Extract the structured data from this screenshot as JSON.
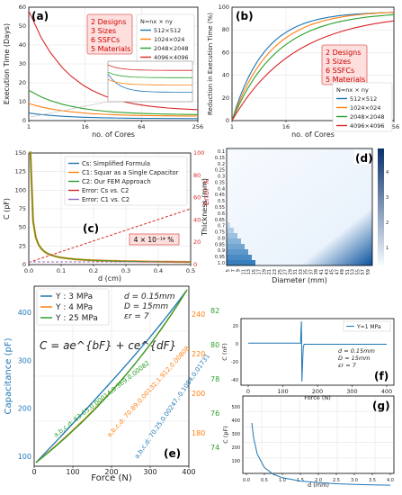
{
  "chart_data": [
    {
      "id": "a",
      "type": "line",
      "panel_label": "(a)",
      "xlabel": "no. of Cores",
      "ylabel": "Execution Time (Days)",
      "xticks": [
        "1",
        "16",
        "64",
        "256"
      ],
      "yticks": [
        "0",
        "10",
        "20",
        "30",
        "40",
        "50",
        "60"
      ],
      "ylim": [
        0,
        60
      ],
      "annotation": [
        "2 Designs",
        "3 Sizes",
        "6 SSFCs",
        "5 Materials"
      ],
      "legend_title": "N=nx × ny",
      "series": [
        {
          "name": "512×512",
          "color": "#1f77b4",
          "x": [
            1,
            4,
            16,
            64,
            128,
            256
          ],
          "values": [
            4,
            3,
            2,
            1.5,
            1.2,
            1
          ]
        },
        {
          "name": "1024×024",
          "color": "#ff7f0e",
          "x": [
            1,
            4,
            16,
            64,
            128,
            256
          ],
          "values": [
            9,
            6,
            4,
            3,
            2.5,
            2.3
          ]
        },
        {
          "name": "2048×2048",
          "color": "#2ca02c",
          "x": [
            1,
            4,
            16,
            64,
            128,
            256
          ],
          "values": [
            16,
            11,
            7,
            4.5,
            3.5,
            3
          ]
        },
        {
          "name": "4096×4096",
          "color": "#d62728",
          "x": [
            1,
            4,
            16,
            64,
            128,
            256
          ],
          "values": [
            58,
            40,
            22,
            9,
            6,
            5
          ]
        }
      ]
    },
    {
      "id": "b",
      "type": "line",
      "panel_label": "(b)",
      "xlabel": "no. of Cores",
      "ylabel": "Reduction in Execution Time (%)",
      "xticks": [
        "1",
        "16",
        "64",
        "256"
      ],
      "yticks": [
        "0",
        "20",
        "40",
        "60",
        "80",
        "100"
      ],
      "ylim": [
        0,
        100
      ],
      "annotation": [
        "2 Designs",
        "3 Sizes",
        "6 SSFCs",
        "5 Materials"
      ],
      "legend_title": "N=nx × ny",
      "series": [
        {
          "name": "512×512",
          "color": "#1f77b4"
        },
        {
          "name": "1024×024",
          "color": "#ff7f0e"
        },
        {
          "name": "2048×2048",
          "color": "#2ca02c"
        },
        {
          "name": "4096×4096",
          "color": "#d62728"
        }
      ]
    },
    {
      "id": "c",
      "type": "line",
      "panel_label": "(c)",
      "xlabel": "d (cm)",
      "ylabel": "C (pF)",
      "ylabel_right": "Error %",
      "xticks": [
        "0.0",
        "0.1",
        "0.2",
        "0.3",
        "0.4",
        "0.5"
      ],
      "yticks": [
        "0",
        "25",
        "50",
        "75",
        "100",
        "125",
        "150"
      ],
      "yticks_right": [
        "0",
        "20",
        "40",
        "60",
        "80",
        "100"
      ],
      "ylim": [
        0,
        150
      ],
      "xlim": [
        0,
        0.5
      ],
      "note": "4 × 10⁻¹⁴ %",
      "series": [
        {
          "name": "Cs: Simplified Formula",
          "color": "#1f77b4"
        },
        {
          "name": "C1: Squar as a Single Capacitor",
          "color": "#ff7f0e"
        },
        {
          "name": "C2: Our FEM Approach",
          "color": "#2ca02c"
        },
        {
          "name": "Error: Cs vs. C2",
          "color": "#d62728"
        },
        {
          "name": "Error: C1 vs. C2",
          "color": "#9467bd"
        }
      ]
    },
    {
      "id": "d",
      "type": "heatmap",
      "panel_label": "(d)",
      "xlabel": "Diameter (mm)",
      "ylabel": "Thickness (mm)",
      "xticks": [
        "5",
        "7",
        "9",
        "11",
        "13",
        "15",
        "17",
        "19",
        "21",
        "23",
        "25",
        "27",
        "29",
        "31",
        "33",
        "35",
        "37",
        "39",
        "41",
        "43",
        "45",
        "47",
        "49",
        "51",
        "53",
        "55",
        "57",
        "59"
      ],
      "yticks": [
        "0.1",
        "0.15",
        "0.2",
        "0.25",
        "0.3",
        "0.35",
        "0.4",
        "0.45",
        "0.5",
        "0.55",
        "0.6",
        "0.65",
        "0.7",
        "0.75",
        "0.8",
        "0.85",
        "0.9",
        "0.95",
        "1.0"
      ],
      "colorbar_ticks": [
        "1",
        "2",
        "3",
        "4"
      ]
    },
    {
      "id": "e",
      "type": "line",
      "panel_label": "(e)",
      "xlabel": "Force (N)",
      "ylabel": "Capacitance (pF)",
      "xticks": [
        "0",
        "100",
        "200",
        "300",
        "400"
      ],
      "yticks": [
        "100",
        "200",
        "300",
        "400"
      ],
      "yticks_right1": [
        "180",
        "200",
        "220",
        "240"
      ],
      "yticks_right2": [
        "74",
        "76",
        "78",
        "80",
        "82"
      ],
      "formula": "C = ae^{bF} + ce^{dF}",
      "params": [
        "d = 0.15mm",
        "D = 15mm",
        "εr = 7"
      ],
      "series": [
        {
          "name": "Y :  3 MPa",
          "color": "#1f77b4",
          "coef": "a,b,c,d: 70.25,0.00247,-0.1084,0.01731"
        },
        {
          "name": "Y :  4 MPa",
          "color": "#ff7f0e",
          "coef": "a,b,c,d: 70.89,0.00132,1.912,0.00808"
        },
        {
          "name": "Y : 25 MPa",
          "color": "#2ca02c",
          "coef": "a,b,c,d: 63.65,0.00014,9.369,0.00082"
        }
      ]
    },
    {
      "id": "f",
      "type": "line",
      "panel_label": "(f)",
      "xlabel": "Force (N)",
      "ylabel": "C (nF)",
      "xticks": [
        "0",
        "100",
        "200",
        "300",
        "400"
      ],
      "yticks": [
        "-40",
        "-20",
        "0",
        "20"
      ],
      "legend": "Y=1 MPa",
      "params": [
        "d = 0.15mm",
        "D = 15mm",
        "εr = 7"
      ]
    },
    {
      "id": "g",
      "type": "line",
      "panel_label": "(g)",
      "xlabel": "d (mm)",
      "ylabel": "C (pF)",
      "xticks": [
        "0.0",
        "0.5",
        "1.0",
        "1.5",
        "2.0",
        "2.5",
        "3.0",
        "3.5",
        "4.0"
      ],
      "yticks": [
        "100",
        "200",
        "300",
        "400",
        "500"
      ],
      "x": [
        0.15,
        0.2,
        0.3,
        0.5,
        0.75,
        1,
        1.5,
        2,
        2.5,
        3,
        3.5,
        4
      ],
      "values": [
        480,
        370,
        250,
        150,
        100,
        75,
        50,
        38,
        30,
        25,
        22,
        19
      ]
    }
  ]
}
